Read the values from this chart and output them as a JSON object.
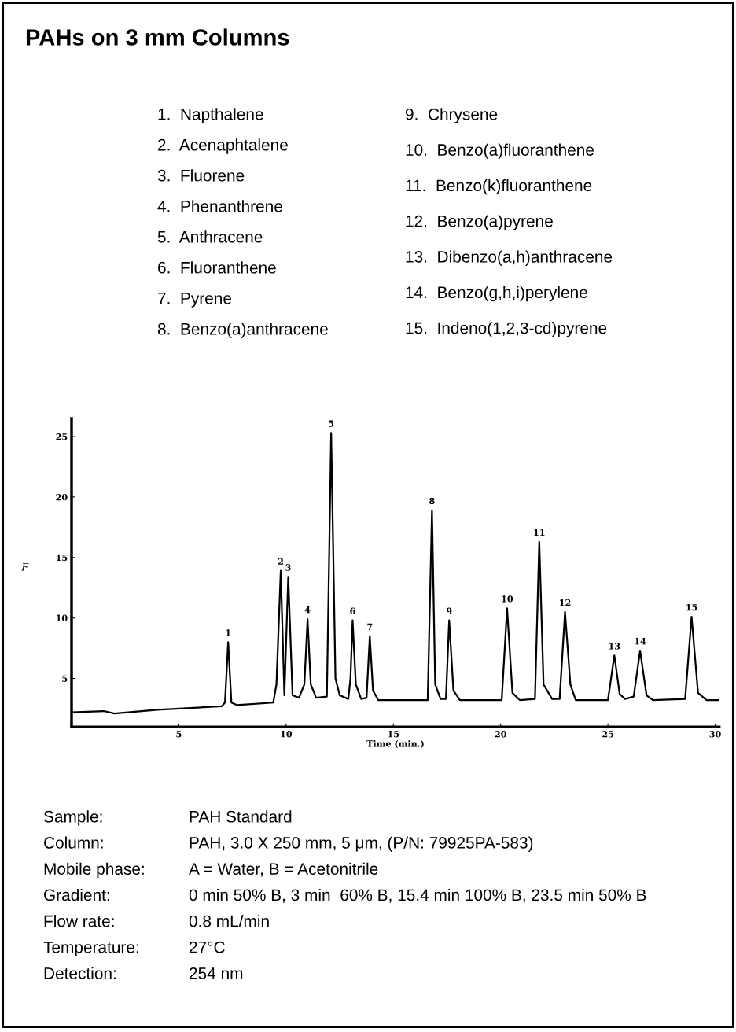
{
  "chart_data": {
    "type": "line",
    "title": "PAHs on 3 mm Columns",
    "xlabel": "Time (min.)",
    "ylabel": "F",
    "x": [
      0.0,
      1.5,
      2.0,
      4.0,
      7.0,
      7.15,
      7.3,
      7.45,
      7.7,
      9.4,
      9.55,
      9.75,
      9.92,
      10.1,
      10.3,
      10.6,
      10.85,
      11.0,
      11.15,
      11.4,
      11.9,
      12.1,
      12.3,
      12.5,
      12.9,
      13.0,
      13.1,
      13.25,
      13.5,
      13.75,
      13.9,
      14.05,
      14.3,
      16.6,
      16.8,
      16.95,
      17.2,
      17.45,
      17.6,
      17.8,
      18.1,
      20.05,
      20.3,
      20.55,
      20.9,
      21.6,
      21.8,
      22.0,
      22.4,
      22.75,
      23.0,
      23.25,
      23.5,
      25.0,
      25.3,
      25.55,
      25.8,
      26.2,
      26.5,
      26.8,
      27.1,
      28.6,
      28.9,
      29.2,
      29.6,
      30.2
    ],
    "series": [
      {
        "color": "#000000",
        "values": [
          2.2,
          2.3,
          2.1,
          2.4,
          2.7,
          3.0,
          8.0,
          3.0,
          2.8,
          3.0,
          4.5,
          13.9,
          3.6,
          13.4,
          3.6,
          3.4,
          4.5,
          9.9,
          4.5,
          3.4,
          3.5,
          25.3,
          5.0,
          3.6,
          3.3,
          5.0,
          9.8,
          4.5,
          3.3,
          3.4,
          8.5,
          4.0,
          3.2,
          3.2,
          18.9,
          4.5,
          3.3,
          3.3,
          9.8,
          4.0,
          3.2,
          3.2,
          10.8,
          3.8,
          3.2,
          3.3,
          16.3,
          4.5,
          3.3,
          3.3,
          10.5,
          4.5,
          3.2,
          3.2,
          6.9,
          3.7,
          3.3,
          3.5,
          7.3,
          3.6,
          3.2,
          3.3,
          10.1,
          3.8,
          3.2,
          3.2
        ]
      }
    ],
    "xlim": [
      0,
      30.2
    ],
    "xticks": [
      5,
      10,
      15,
      20,
      25,
      30
    ],
    "ylim": [
      1,
      26.5
    ],
    "yticks": [
      5,
      10,
      15,
      20,
      25
    ],
    "grid": false,
    "marker": "none",
    "line_style": "solid",
    "annotations": [
      {
        "text": "1",
        "x": 7.3,
        "y": 8.0
      },
      {
        "text": "2",
        "x": 9.75,
        "y": 13.9
      },
      {
        "text": "3",
        "x": 10.1,
        "y": 13.4
      },
      {
        "text": "4",
        "x": 11.0,
        "y": 9.9
      },
      {
        "text": "5",
        "x": 12.1,
        "y": 25.3
      },
      {
        "text": "6",
        "x": 13.1,
        "y": 9.8
      },
      {
        "text": "7",
        "x": 13.9,
        "y": 8.5
      },
      {
        "text": "8",
        "x": 16.8,
        "y": 18.9
      },
      {
        "text": "9",
        "x": 17.6,
        "y": 9.8
      },
      {
        "text": "10",
        "x": 20.3,
        "y": 10.8
      },
      {
        "text": "11",
        "x": 21.8,
        "y": 16.3
      },
      {
        "text": "12",
        "x": 23.0,
        "y": 10.5
      },
      {
        "text": "13",
        "x": 25.3,
        "y": 6.9
      },
      {
        "text": "14",
        "x": 26.5,
        "y": 7.3
      },
      {
        "text": "15",
        "x": 28.9,
        "y": 10.1
      },
      "1.  Napthalene",
      "2.  Acenaphtalene",
      "3.  Fluorene",
      "4.  Phenanthrene",
      "5.  Anthracene",
      "6.  Fluoranthene",
      "7.  Pyrene",
      "8.  Benzo(a)anthracene",
      "9.  Chrysene",
      "10.  Benzo(a)fluoranthene",
      "11.  Benzo(k)fluoranthene",
      "12.  Benzo(a)pyrene",
      "13.  Dibenzo(a,h)anthracene",
      "14.  Benzo(g,h,i)perylene",
      "15.  Indeno(1,2,3-cd)pyrene",
      "Sample:",
      "PAH Standard",
      "Column:",
      "PAH, 3.0 X 250 mm, 5 μm, (P/N: 79925PA-583)",
      "Mobile phase:",
      "A = Water, B = Acetonitrile",
      "Gradient:",
      "0 min 50% B, 3 min  60% B, 15.4 min 100% B, 23.5 min 50% B",
      "Flow rate:",
      "0.8 mL/min",
      "Temperature:",
      "27°C",
      "Detection:",
      "254 nm"
    ]
  }
}
